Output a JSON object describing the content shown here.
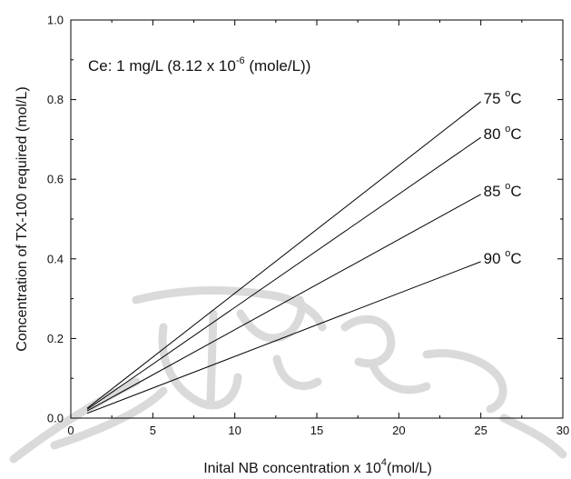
{
  "chart_data": {
    "type": "line",
    "xlabel": "Inital NB concentration x 10",
    "xlabel_sup": "4",
    "xlabel_unit": "(mol/L)",
    "ylabel": "Concentration of TX-100 required (mol/L)",
    "xlim": [
      0,
      30
    ],
    "ylim": [
      0.0,
      1.0
    ],
    "x_ticks": [
      "0",
      "5",
      "10",
      "15",
      "20",
      "25",
      "30"
    ],
    "y_ticks": [
      "0.0",
      "0.2",
      "0.4",
      "0.6",
      "0.8",
      "1.0"
    ],
    "annotation": {
      "prefix": "Ce: 1 mg/L (8.12 x 10",
      "sup": "-6",
      "suffix": " (mole/L))"
    },
    "grid": false,
    "series": [
      {
        "name": "75 °C",
        "x": [
          1,
          25
        ],
        "y": [
          0.025,
          0.795
        ]
      },
      {
        "name": "80 °C",
        "x": [
          1,
          25
        ],
        "y": [
          0.022,
          0.705
        ]
      },
      {
        "name": "85 °C",
        "x": [
          1,
          25
        ],
        "y": [
          0.018,
          0.562
        ]
      },
      {
        "name": "90 °C",
        "x": [
          1,
          25
        ],
        "y": [
          0.012,
          0.393
        ]
      }
    ],
    "series_label_names": [
      "75",
      "80",
      "85",
      "90"
    ],
    "series_label_unit_sup": "o",
    "series_label_unit": "C",
    "line_color": "#000000"
  }
}
